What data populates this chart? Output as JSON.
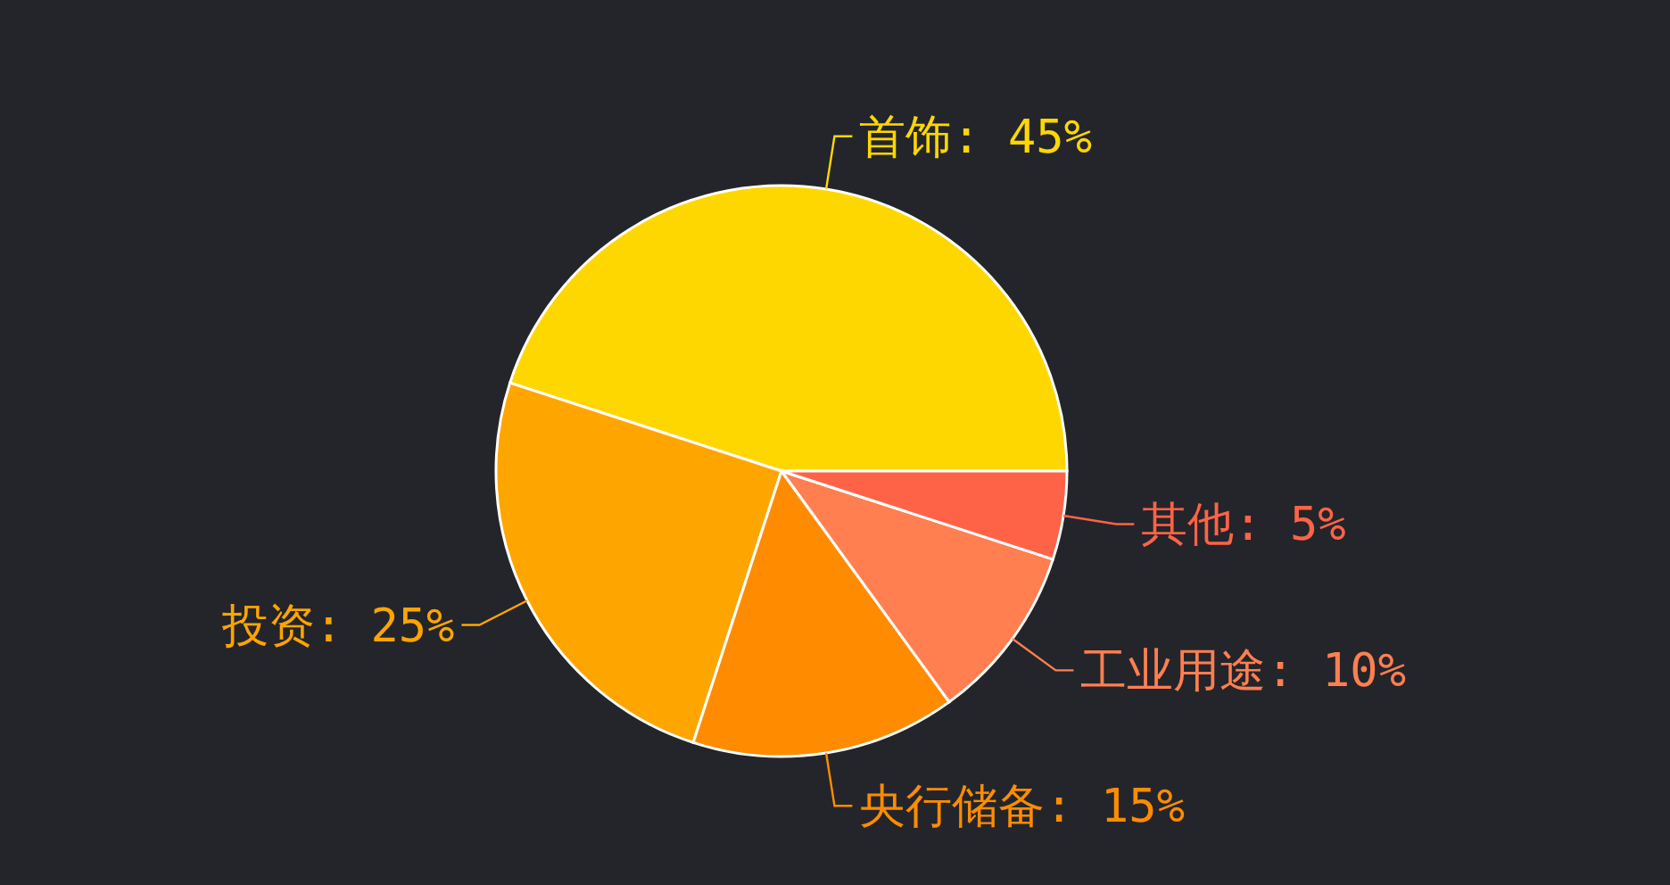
{
  "chart_data": {
    "type": "pie",
    "categories": [
      "首饰",
      "投资",
      "央行储备",
      "工业用途",
      "其他"
    ],
    "values": [
      45,
      25,
      15,
      10,
      5
    ],
    "value_labels": [
      ": 45%",
      ": 25%",
      ": 15%",
      ": 10%",
      ": 5%"
    ],
    "colors": [
      "#ffd700",
      "#ffa500",
      "#ff8c00",
      "#ff7f50",
      "#ff6347"
    ]
  }
}
